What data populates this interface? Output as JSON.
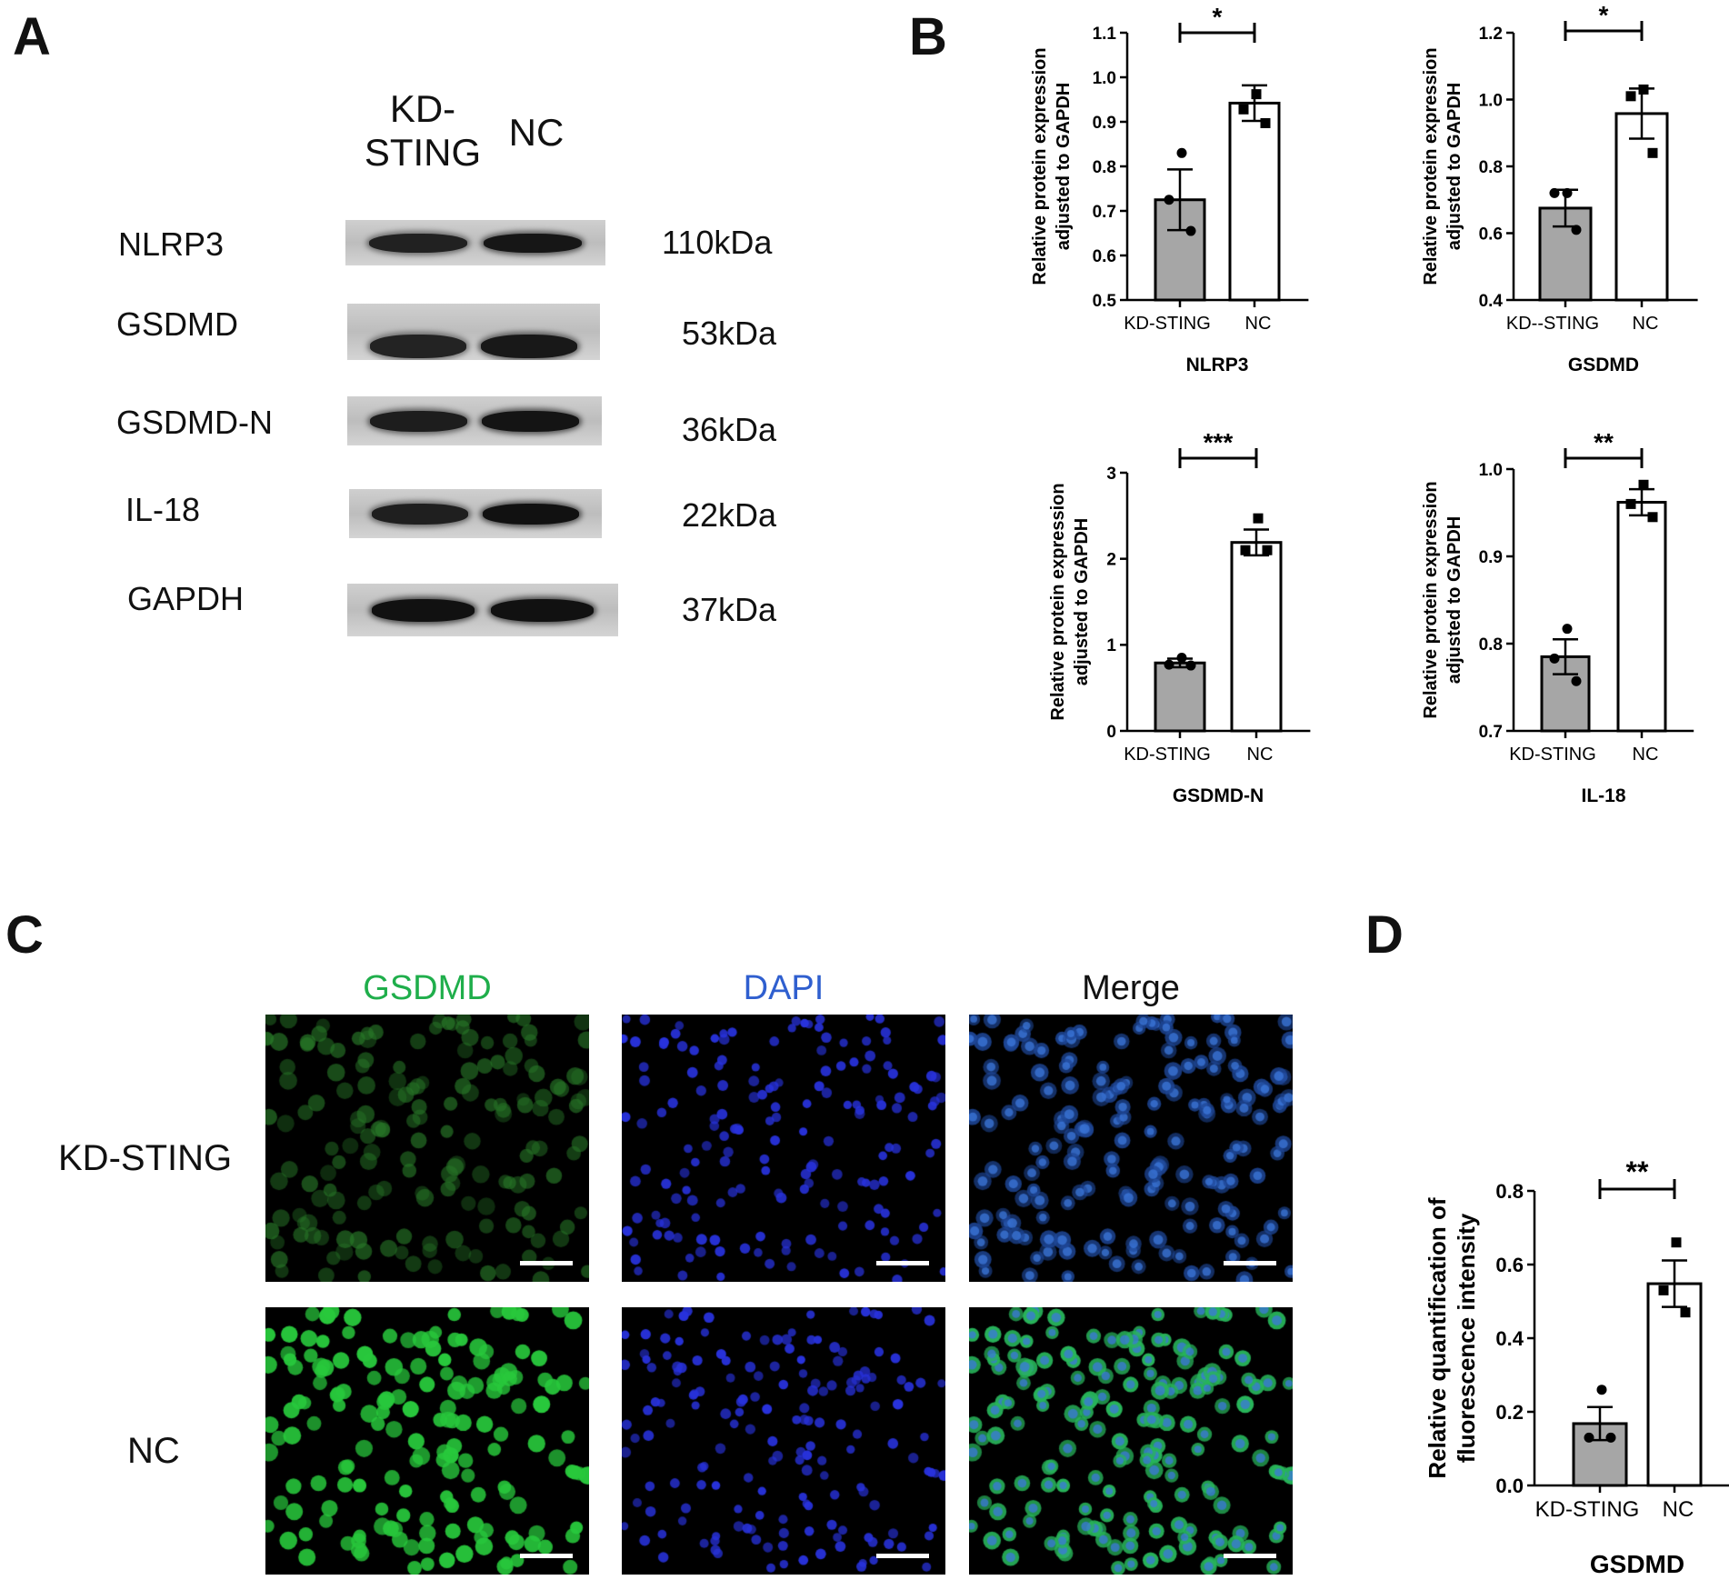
{
  "panels": {
    "A": "A",
    "B": "B",
    "C": "C",
    "D": "D"
  },
  "western_blot": {
    "lanes": [
      {
        "line1": "KD-",
        "line2": "STING"
      },
      {
        "line1": "NC",
        "line2": ""
      }
    ],
    "rows": [
      {
        "label": "NLRP3",
        "kda": "110kDa",
        "intensity": [
          0.6,
          0.85
        ]
      },
      {
        "label": "GSDMD",
        "kda": "53kDa",
        "intensity": [
          0.55,
          0.8
        ]
      },
      {
        "label": "GSDMD-N",
        "kda": "36kDa",
        "intensity": [
          0.7,
          0.9
        ]
      },
      {
        "label": "IL-18",
        "kda": "22kDa",
        "intensity": [
          0.65,
          0.95
        ]
      },
      {
        "label": "GAPDH",
        "kda": "37kDa",
        "intensity": [
          0.95,
          0.95
        ]
      }
    ]
  },
  "fluorescence": {
    "columns": [
      "GSDMD",
      "DAPI",
      "Merge"
    ],
    "column_colors": [
      "#1fae4b",
      "#2f5fcf",
      "#111111"
    ],
    "rows": [
      "KD-STING",
      "NC"
    ]
  },
  "chart_data": [
    {
      "id": "B-NLRP3",
      "type": "bar",
      "title": "NLRP3",
      "ylabel": "Relative protein expression adjusted to GAPDH",
      "categories": [
        "KD-STING",
        "NC"
      ],
      "values": [
        0.725,
        0.942
      ],
      "sem": [
        0.068,
        0.04
      ],
      "points": [
        [
          0.83,
          0.725,
          0.655
        ],
        [
          0.962,
          0.928,
          0.897
        ]
      ],
      "ylim": [
        0.5,
        1.1
      ],
      "yticks": [
        "0.5",
        "0.6",
        "0.7",
        "0.8",
        "0.9",
        "1.0",
        "1.1"
      ],
      "significance": "*"
    },
    {
      "id": "B-GSDMD",
      "type": "bar",
      "title": "GSDMD",
      "ylabel": "Relative protein expression adjusted to GAPDH",
      "categories": [
        "KD--STING",
        "NC"
      ],
      "values": [
        0.675,
        0.958
      ],
      "sem": [
        0.055,
        0.075
      ],
      "points": [
        [
          0.72,
          0.72,
          0.61
        ],
        [
          1.03,
          1.01,
          0.84
        ]
      ],
      "ylim": [
        0.4,
        1.2
      ],
      "yticks": [
        "0.4",
        "0.6",
        "0.8",
        "1.0",
        "1.2"
      ],
      "significance": "*"
    },
    {
      "id": "B-GSDMD-N",
      "type": "bar",
      "title": "GSDMD-N",
      "ylabel": "Relative protein expression adjusted to GAPDH",
      "categories": [
        "KD-STING",
        "NC"
      ],
      "values": [
        0.79,
        2.19
      ],
      "sem": [
        0.05,
        0.15
      ],
      "points": [
        [
          0.85,
          0.77,
          0.76
        ],
        [
          2.47,
          2.1,
          2.1
        ]
      ],
      "ylim": [
        0,
        3
      ],
      "yticks": [
        "0",
        "1",
        "2",
        "3"
      ],
      "significance": "***"
    },
    {
      "id": "B-IL-18",
      "type": "bar",
      "title": "IL-18",
      "ylabel": "Relative protein expression adjusted to GAPDH",
      "categories": [
        "KD-STING",
        "NC"
      ],
      "values": [
        0.785,
        0.962
      ],
      "sem": [
        0.02,
        0.015
      ],
      "points": [
        [
          0.817,
          0.783,
          0.757
        ],
        [
          0.982,
          0.96,
          0.945
        ]
      ],
      "ylim": [
        0.7,
        1.0
      ],
      "yticks": [
        "0.7",
        "0.8",
        "0.9",
        "1.0"
      ],
      "significance": "**"
    },
    {
      "id": "D-GSDMD",
      "type": "bar",
      "title": "GSDMD",
      "ylabel": "Relative quantification of fluorescence intensity",
      "categories": [
        "KD-STING",
        "NC"
      ],
      "values": [
        0.168,
        0.548
      ],
      "sem": [
        0.045,
        0.063
      ],
      "points": [
        [
          0.26,
          0.13,
          0.13
        ],
        [
          0.66,
          0.53,
          0.47
        ]
      ],
      "ylim": [
        0,
        0.8
      ],
      "yticks": [
        "0.0",
        "0.2",
        "0.4",
        "0.6",
        "0.8"
      ],
      "significance": "**"
    }
  ]
}
